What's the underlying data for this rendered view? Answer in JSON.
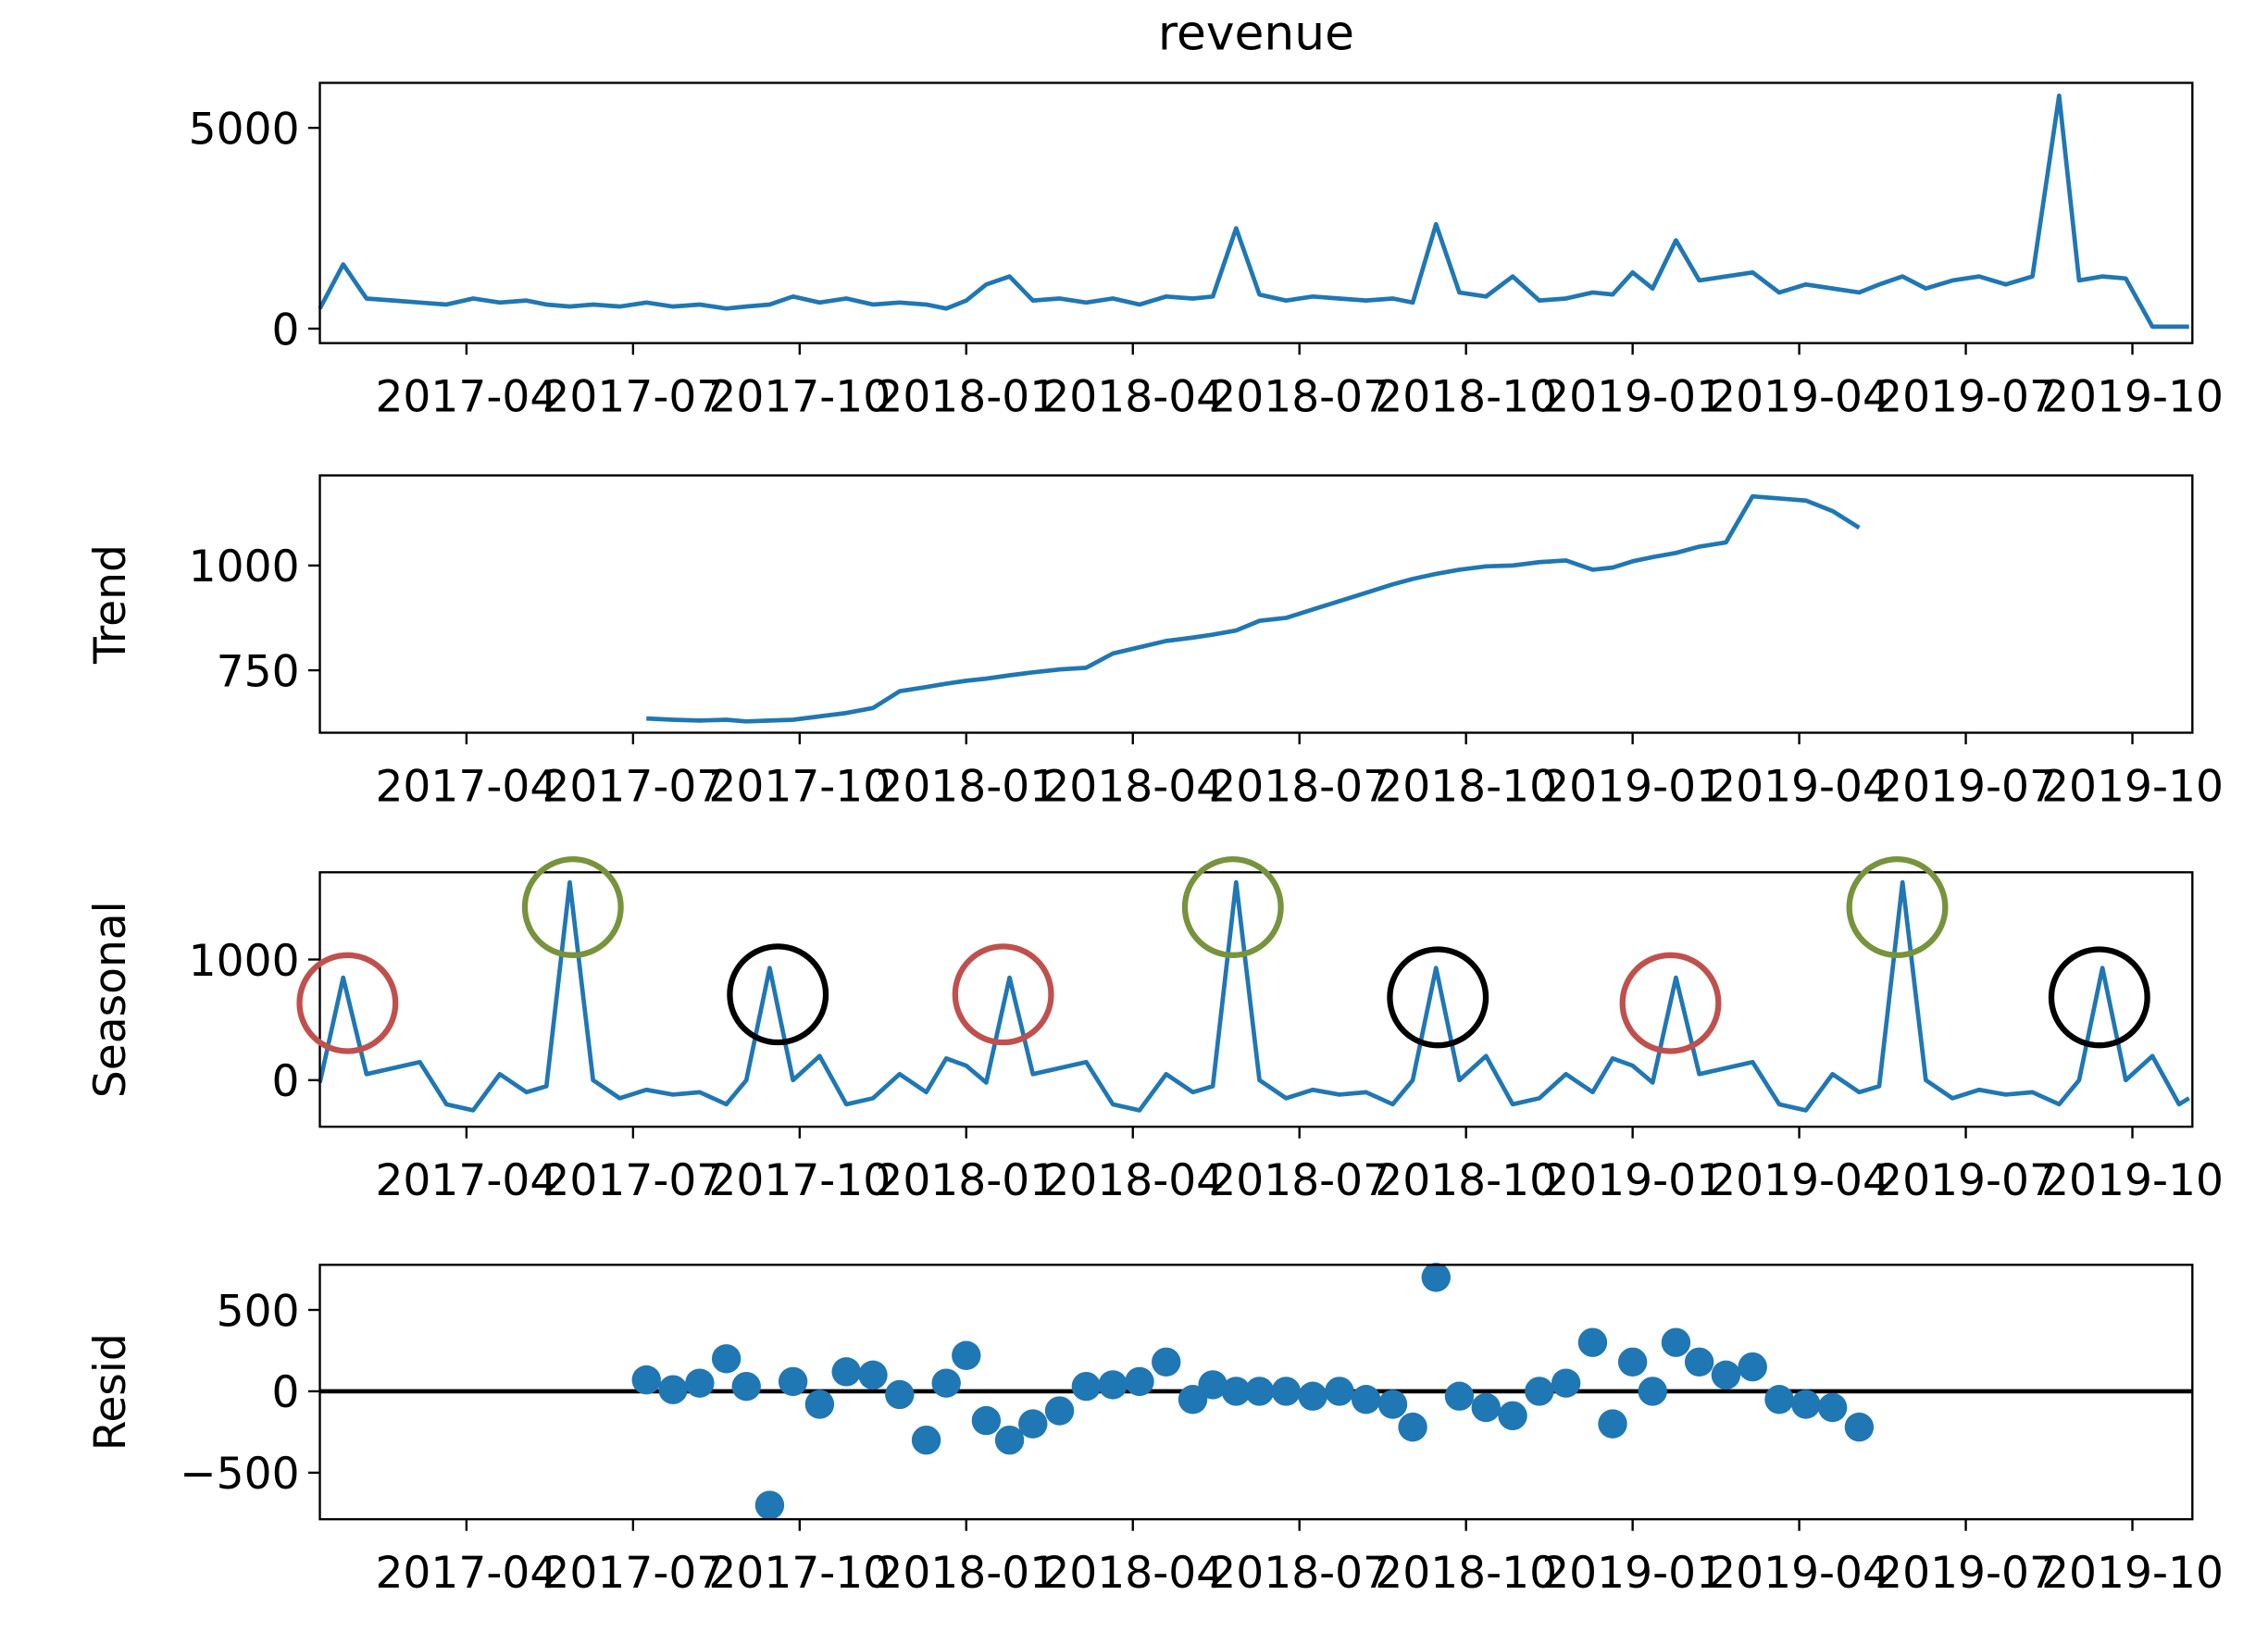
{
  "chart_data": [
    {
      "type": "line",
      "title": "revenue",
      "color": "#1f77b4",
      "x": [
        2017.03,
        2017.065,
        2017.1,
        2017.14,
        2017.18,
        2017.22,
        2017.26,
        2017.3,
        2017.34,
        2017.37,
        2017.405,
        2017.44,
        2017.48,
        2017.52,
        2017.56,
        2017.6,
        2017.64,
        2017.67,
        2017.705,
        2017.74,
        2017.78,
        2017.82,
        2017.86,
        2017.9,
        2017.94,
        2017.97,
        2018.0,
        2018.03,
        2018.065,
        2018.1,
        2018.14,
        2018.18,
        2018.22,
        2018.26,
        2018.3,
        2018.34,
        2018.37,
        2018.405,
        2018.44,
        2018.48,
        2018.52,
        2018.56,
        2018.6,
        2018.64,
        2018.67,
        2018.705,
        2018.74,
        2018.78,
        2018.82,
        2018.86,
        2018.9,
        2018.94,
        2018.97,
        2019.0,
        2019.03,
        2019.065,
        2019.1,
        2019.14,
        2019.18,
        2019.22,
        2019.26,
        2019.3,
        2019.34,
        2019.37,
        2019.405,
        2019.44,
        2019.48,
        2019.52,
        2019.56,
        2019.6,
        2019.64,
        2019.67,
        2019.705,
        2019.74,
        2019.78,
        2019.82,
        2019.835
      ],
      "values": [
        500,
        1600,
        750,
        700,
        650,
        600,
        750,
        650,
        700,
        600,
        550,
        600,
        550,
        650,
        550,
        600,
        500,
        550,
        600,
        800,
        650,
        750,
        600,
        650,
        600,
        500,
        700,
        1100,
        1300,
        700,
        750,
        650,
        750,
        600,
        800,
        750,
        800,
        2500,
        850,
        700,
        800,
        750,
        700,
        750,
        650,
        2600,
        900,
        800,
        1300,
        700,
        750,
        900,
        850,
        1400,
        1000,
        2200,
        1200,
        1300,
        1400,
        900,
        1100,
        1000,
        900,
        1100,
        1300,
        1000,
        1200,
        1300,
        1100,
        1300,
        5800,
        1200,
        1300,
        1250,
        50,
        50,
        50
      ],
      "xlim": [
        2017.03,
        2019.84
      ],
      "ylim": [
        -360,
        6120
      ],
      "xticks": [
        {
          "value": 2017.25,
          "label": "2017-04"
        },
        {
          "value": 2017.5,
          "label": "2017-07"
        },
        {
          "value": 2017.75,
          "label": "2017-10"
        },
        {
          "value": 2018.0,
          "label": "2018-01"
        },
        {
          "value": 2018.25,
          "label": "2018-04"
        },
        {
          "value": 2018.5,
          "label": "2018-07"
        },
        {
          "value": 2018.75,
          "label": "2018-10"
        },
        {
          "value": 2019.0,
          "label": "2019-01"
        },
        {
          "value": 2019.25,
          "label": "2019-04"
        },
        {
          "value": 2019.5,
          "label": "2019-07"
        },
        {
          "value": 2019.75,
          "label": "2019-10"
        }
      ],
      "yticks": [
        0,
        5000
      ]
    },
    {
      "type": "line",
      "ylabel": "Trend",
      "color": "#1f77b4",
      "x": [
        2017.03,
        2017.065,
        2017.1,
        2017.14,
        2017.18,
        2017.22,
        2017.26,
        2017.3,
        2017.34,
        2017.37,
        2017.405,
        2017.44,
        2017.48,
        2017.52,
        2017.56,
        2017.6,
        2017.64,
        2017.67,
        2017.705,
        2017.74,
        2017.78,
        2017.82,
        2017.86,
        2017.9,
        2017.94,
        2017.97,
        2018.0,
        2018.03,
        2018.065,
        2018.1,
        2018.14,
        2018.18,
        2018.22,
        2018.26,
        2018.3,
        2018.34,
        2018.37,
        2018.405,
        2018.44,
        2018.48,
        2018.52,
        2018.56,
        2018.6,
        2018.64,
        2018.67,
        2018.705,
        2018.74,
        2018.78,
        2018.82,
        2018.86,
        2018.9,
        2018.94,
        2018.97,
        2019.0,
        2019.03,
        2019.065,
        2019.1,
        2019.14,
        2019.18,
        2019.22,
        2019.26,
        2019.3,
        2019.34,
        2019.37,
        2019.405,
        2019.44,
        2019.48,
        2019.52,
        2019.56,
        2019.6,
        2019.64,
        2019.67,
        2019.705,
        2019.74,
        2019.78,
        2019.82,
        2019.835
      ],
      "values": [
        null,
        null,
        null,
        null,
        null,
        null,
        null,
        null,
        null,
        null,
        null,
        null,
        null,
        635,
        632,
        630,
        632,
        628,
        630,
        632,
        640,
        648,
        660,
        700,
        710,
        718,
        725,
        730,
        738,
        745,
        752,
        756,
        790,
        805,
        820,
        828,
        835,
        845,
        868,
        875,
        895,
        915,
        935,
        955,
        968,
        980,
        990,
        998,
        1000,
        1008,
        1012,
        990,
        995,
        1010,
        1020,
        1030,
        1045,
        1055,
        1165,
        1160,
        1155,
        1130,
        1090,
        null,
        null,
        null,
        null,
        null,
        null,
        null,
        null,
        null,
        null,
        null,
        null,
        null,
        null
      ],
      "xlim": [
        2017.03,
        2019.84
      ],
      "ylim": [
        601,
        1215
      ],
      "xticks": [
        {
          "value": 2017.25,
          "label": "2017-04"
        },
        {
          "value": 2017.5,
          "label": "2017-07"
        },
        {
          "value": 2017.75,
          "label": "2017-10"
        },
        {
          "value": 2018.0,
          "label": "2018-01"
        },
        {
          "value": 2018.25,
          "label": "2018-04"
        },
        {
          "value": 2018.5,
          "label": "2018-07"
        },
        {
          "value": 2018.75,
          "label": "2018-10"
        },
        {
          "value": 2019.0,
          "label": "2019-01"
        },
        {
          "value": 2019.25,
          "label": "2019-04"
        },
        {
          "value": 2019.5,
          "label": "2019-07"
        },
        {
          "value": 2019.75,
          "label": "2019-10"
        }
      ],
      "yticks": [
        750,
        1000
      ]
    },
    {
      "type": "line",
      "ylabel": "Seasonal",
      "color": "#1f77b4",
      "x": [
        2017.03,
        2017.065,
        2017.1,
        2017.14,
        2017.18,
        2017.22,
        2017.26,
        2017.3,
        2017.34,
        2017.37,
        2017.405,
        2017.44,
        2017.48,
        2017.52,
        2017.56,
        2017.6,
        2017.64,
        2017.67,
        2017.705,
        2017.74,
        2017.78,
        2017.82,
        2017.86,
        2017.9,
        2017.94,
        2017.97,
        2018.0,
        2018.03,
        2018.065,
        2018.1,
        2018.14,
        2018.18,
        2018.22,
        2018.26,
        2018.3,
        2018.34,
        2018.37,
        2018.405,
        2018.44,
        2018.48,
        2018.52,
        2018.56,
        2018.6,
        2018.64,
        2018.67,
        2018.705,
        2018.74,
        2018.78,
        2018.82,
        2018.86,
        2018.9,
        2018.94,
        2018.97,
        2019.0,
        2019.03,
        2019.065,
        2019.1,
        2019.14,
        2019.18,
        2019.22,
        2019.26,
        2019.3,
        2019.34,
        2019.37,
        2019.405,
        2019.44,
        2019.48,
        2019.52,
        2019.56,
        2019.6,
        2019.64,
        2019.67,
        2019.705,
        2019.74,
        2019.78,
        2019.82,
        2019.835
      ],
      "values": [
        -20,
        850,
        50,
        100,
        150,
        -200,
        -250,
        50,
        -100,
        -50,
        1640,
        0,
        -150,
        -80,
        -120,
        -100,
        -200,
        0,
        930,
        0,
        200,
        -200,
        -150,
        50,
        -100,
        180,
        120,
        -20,
        850,
        50,
        100,
        150,
        -200,
        -250,
        50,
        -100,
        -50,
        1640,
        0,
        -150,
        -80,
        -120,
        -100,
        -200,
        0,
        930,
        0,
        200,
        -200,
        -150,
        50,
        -100,
        180,
        120,
        -20,
        850,
        50,
        100,
        150,
        -200,
        -250,
        50,
        -100,
        -50,
        1640,
        0,
        -150,
        -80,
        -120,
        -100,
        -200,
        0,
        930,
        0,
        200,
        -200,
        -150
      ],
      "xlim": [
        2017.03,
        2019.84
      ],
      "ylim": [
        -386,
        1723
      ],
      "xticks": [
        {
          "value": 2017.25,
          "label": "2017-04"
        },
        {
          "value": 2017.5,
          "label": "2017-07"
        },
        {
          "value": 2017.75,
          "label": "2017-10"
        },
        {
          "value": 2018.0,
          "label": "2018-01"
        },
        {
          "value": 2018.25,
          "label": "2018-04"
        },
        {
          "value": 2018.5,
          "label": "2018-07"
        },
        {
          "value": 2018.75,
          "label": "2018-10"
        },
        {
          "value": 2019.0,
          "label": "2019-01"
        },
        {
          "value": 2019.25,
          "label": "2019-04"
        },
        {
          "value": 2019.5,
          "label": "2019-07"
        },
        {
          "value": 2019.75,
          "label": "2019-10"
        }
      ],
      "yticks": [
        0,
        1000
      ]
    },
    {
      "type": "scatter",
      "ylabel": "Resid",
      "color": "#1f77b4",
      "x": [
        2017.03,
        2017.065,
        2017.1,
        2017.14,
        2017.18,
        2017.22,
        2017.26,
        2017.3,
        2017.34,
        2017.37,
        2017.405,
        2017.44,
        2017.48,
        2017.52,
        2017.56,
        2017.6,
        2017.64,
        2017.67,
        2017.705,
        2017.74,
        2017.78,
        2017.82,
        2017.86,
        2017.9,
        2017.94,
        2017.97,
        2018.0,
        2018.03,
        2018.065,
        2018.1,
        2018.14,
        2018.18,
        2018.22,
        2018.26,
        2018.3,
        2018.34,
        2018.37,
        2018.405,
        2018.44,
        2018.48,
        2018.52,
        2018.56,
        2018.6,
        2018.64,
        2018.67,
        2018.705,
        2018.74,
        2018.78,
        2018.82,
        2018.86,
        2018.9,
        2018.94,
        2018.97,
        2019.0,
        2019.03,
        2019.065,
        2019.1,
        2019.14,
        2019.18,
        2019.22,
        2019.26,
        2019.3,
        2019.34,
        2019.37,
        2019.405,
        2019.44,
        2019.48,
        2019.52,
        2019.56,
        2019.6,
        2019.64,
        2019.67,
        2019.705,
        2019.74,
        2019.78,
        2019.82,
        2019.835
      ],
      "values": [
        null,
        null,
        null,
        null,
        null,
        null,
        null,
        null,
        null,
        null,
        null,
        null,
        null,
        70,
        10,
        50,
        200,
        30,
        -700,
        60,
        -80,
        120,
        100,
        -20,
        -300,
        50,
        220,
        -180,
        -300,
        -200,
        -120,
        30,
        40,
        60,
        180,
        -50,
        40,
        0,
        0,
        0,
        -30,
        0,
        -50,
        -80,
        -220,
        700,
        -30,
        -100,
        -150,
        0,
        50,
        300,
        -200,
        180,
        0,
        300,
        180,
        100,
        150,
        -50,
        -80,
        -100,
        -220,
        null,
        null,
        null,
        null,
        null,
        null,
        null,
        null,
        null,
        null,
        null,
        null,
        null,
        null
      ],
      "xlim": [
        2017.03,
        2019.84
      ],
      "ylim": [
        -786,
        777
      ],
      "xticks": [
        {
          "value": 2017.25,
          "label": "2017-04"
        },
        {
          "value": 2017.5,
          "label": "2017-07"
        },
        {
          "value": 2017.75,
          "label": "2017-10"
        },
        {
          "value": 2018.0,
          "label": "2018-01"
        },
        {
          "value": 2018.25,
          "label": "2018-04"
        },
        {
          "value": 2018.5,
          "label": "2018-07"
        },
        {
          "value": 2018.75,
          "label": "2018-10"
        },
        {
          "value": 2019.0,
          "label": "2019-01"
        },
        {
          "value": 2019.25,
          "label": "2019-04"
        },
        {
          "value": 2019.5,
          "label": "2019-07"
        },
        {
          "value": 2019.75,
          "label": "2019-10"
        }
      ],
      "yticks": [
        {
          "value": -500,
          "label": "−500"
        },
        0,
        500
      ]
    }
  ]
}
